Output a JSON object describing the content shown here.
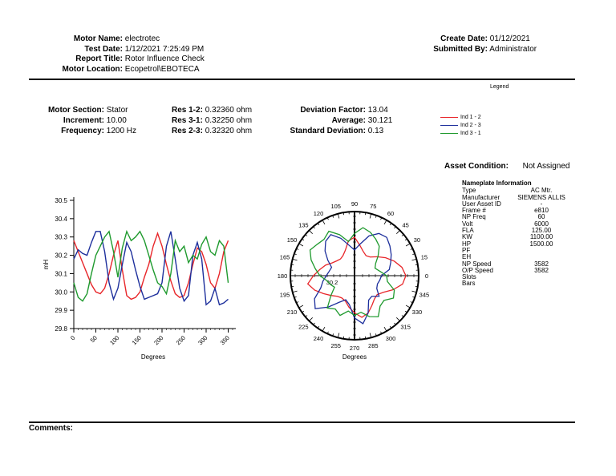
{
  "header": {
    "motor_name_label": "Motor Name:",
    "motor_name": "electrotec",
    "test_date_label": "Test Date:",
    "test_date": "1/12/2021 7:25:49 PM",
    "report_title_label": "Report Title:",
    "report_title": "Rotor Influence Check",
    "motor_location_label": "Motor Location:",
    "motor_location": "Ecopetrol\\EBOTECA",
    "create_date_label": "Create Date:",
    "create_date": "01/12/2021",
    "submitted_by_label": "Submitted By:",
    "submitted_by": "Administrator"
  },
  "summary": {
    "motor_section_label": "Motor Section:",
    "motor_section": "Stator",
    "increment_label": "Increment:",
    "increment": "10.00",
    "frequency_label": "Frequency:",
    "frequency": "1200 Hz",
    "res12_label": "Res 1-2:",
    "res12": "0.32360 ohm",
    "res31_label": "Res 3-1:",
    "res31": "0.32250 ohm",
    "res23_label": "Res 2-3:",
    "res23": "0.32320 ohm",
    "deviation_label": "Deviation Factor:",
    "deviation": "13.04",
    "average_label": "Average:",
    "average": "30.121",
    "stddev_label": "Standard Deviation:",
    "stddev": "0.13"
  },
  "legend": {
    "title": "Legend",
    "items": [
      {
        "label": "Ind 1 - 2",
        "color": "#e8262a"
      },
      {
        "label": "Ind 2 - 3",
        "color": "#1d2f9c"
      },
      {
        "label": "Ind 3 - 1",
        "color": "#1f9a2e"
      }
    ]
  },
  "asset": {
    "label": "Asset Condition:",
    "value": "Not Assigned"
  },
  "nameplate": {
    "title": "Nameplate Information",
    "rows": [
      {
        "k": "Type",
        "v": "AC Mtr."
      },
      {
        "k": "Manufacturer",
        "v": "SIEMENS ALLIS"
      },
      {
        "k": "User Asset ID",
        "v": "-"
      },
      {
        "k": "Frame #",
        "v": "e810"
      },
      {
        "k": "NP Freq",
        "v": "60"
      },
      {
        "k": "Volt",
        "v": "6000"
      },
      {
        "k": "FLA",
        "v": "125.00"
      },
      {
        "k": "KW",
        "v": "1100.00"
      },
      {
        "k": "HP",
        "v": "1500.00"
      },
      {
        "k": "PF",
        "v": ""
      },
      {
        "k": "EH",
        "v": ""
      },
      {
        "k": "NP Speed",
        "v": "3582"
      },
      {
        "k": "O/P Speed",
        "v": "3582"
      },
      {
        "k": "Slots",
        "v": ""
      },
      {
        "k": "Bars",
        "v": ""
      }
    ]
  },
  "comments_label": "Comments:",
  "chart_data": [
    {
      "type": "line",
      "title": "",
      "xlabel": "Degrees",
      "ylabel": "mH",
      "xlim": [
        0,
        360
      ],
      "ylim": [
        29.8,
        30.5
      ],
      "xticks": [
        0,
        50,
        100,
        150,
        200,
        250,
        300,
        350
      ],
      "yticks": [
        29.8,
        29.9,
        30.0,
        30.1,
        30.2,
        30.3,
        30.4,
        30.5
      ],
      "x": [
        0,
        10,
        20,
        30,
        40,
        50,
        60,
        70,
        80,
        90,
        100,
        110,
        120,
        130,
        140,
        150,
        160,
        170,
        180,
        190,
        200,
        210,
        220,
        230,
        240,
        250,
        260,
        270,
        280,
        290,
        300,
        310,
        320,
        330,
        340,
        350
      ],
      "series": [
        {
          "name": "Ind 1 - 2",
          "values": [
            30.28,
            30.22,
            30.16,
            30.1,
            30.04,
            30.0,
            29.99,
            30.02,
            30.1,
            30.2,
            30.28,
            30.12,
            29.98,
            29.96,
            29.97,
            30.0,
            30.08,
            30.15,
            30.25,
            30.32,
            30.25,
            30.15,
            30.06,
            29.99,
            29.97,
            29.98,
            30.05,
            30.15,
            30.24,
            30.22,
            30.15,
            30.05,
            30.02,
            30.1,
            30.22,
            30.28
          ]
        },
        {
          "name": "Ind 2 - 3",
          "values": [
            30.18,
            30.23,
            30.21,
            30.2,
            30.27,
            30.33,
            30.33,
            30.22,
            30.05,
            29.96,
            30.02,
            30.15,
            30.27,
            30.22,
            30.12,
            30.03,
            29.96,
            29.97,
            29.98,
            29.99,
            30.05,
            30.25,
            30.33,
            30.18,
            30.02,
            29.95,
            29.98,
            30.2,
            30.27,
            30.18,
            29.93,
            29.95,
            30.02,
            29.93,
            29.94,
            29.96
          ]
        },
        {
          "name": "Ind 3 - 1",
          "values": [
            30.05,
            29.97,
            29.95,
            29.99,
            30.1,
            30.2,
            30.25,
            30.3,
            30.33,
            30.22,
            30.08,
            30.24,
            30.33,
            30.28,
            30.3,
            30.33,
            30.28,
            30.2,
            30.12,
            30.05,
            30.03,
            29.99,
            30.1,
            30.28,
            30.22,
            30.25,
            30.16,
            30.2,
            30.18,
            30.26,
            30.3,
            30.22,
            30.2,
            30.28,
            30.25,
            30.05
          ]
        }
      ]
    },
    {
      "type": "polar-line",
      "title": "",
      "xlabel": "Degrees",
      "angle_labels": [
        0,
        15,
        30,
        45,
        60,
        75,
        90,
        105,
        120,
        135,
        150,
        165,
        180,
        195,
        210,
        225,
        240,
        255,
        270,
        285,
        300,
        315,
        330,
        345
      ],
      "radial_label": "30.2",
      "theta": [
        0,
        10,
        20,
        30,
        40,
        50,
        60,
        70,
        80,
        90,
        100,
        110,
        120,
        130,
        140,
        150,
        160,
        170,
        180,
        190,
        200,
        210,
        220,
        230,
        240,
        250,
        260,
        270,
        280,
        290,
        300,
        310,
        320,
        330,
        340,
        350
      ],
      "series": [
        {
          "name": "Ind 1 - 2",
          "values": [
            0.8,
            0.75,
            0.66,
            0.56,
            0.46,
            0.38,
            0.36,
            0.4,
            0.48,
            0.6,
            0.55,
            0.42,
            0.36,
            0.34,
            0.36,
            0.4,
            0.48,
            0.55,
            0.64,
            0.74,
            0.66,
            0.56,
            0.48,
            0.42,
            0.4,
            0.42,
            0.5,
            0.58,
            0.66,
            0.62,
            0.54,
            0.48,
            0.46,
            0.52,
            0.64,
            0.76
          ]
        },
        {
          "name": "Ind 2 - 3",
          "values": [
            0.42,
            0.55,
            0.6,
            0.66,
            0.72,
            0.78,
            0.76,
            0.66,
            0.5,
            0.4,
            0.48,
            0.62,
            0.74,
            0.7,
            0.6,
            0.48,
            0.38,
            0.4,
            0.44,
            0.5,
            0.56,
            0.72,
            0.8,
            0.64,
            0.48,
            0.4,
            0.46,
            0.66,
            0.76,
            0.62,
            0.44,
            0.42,
            0.5,
            0.4,
            0.38,
            0.4
          ]
        },
        {
          "name": "Ind 3 - 1",
          "values": [
            0.5,
            0.4,
            0.34,
            0.38,
            0.48,
            0.6,
            0.66,
            0.72,
            0.76,
            0.66,
            0.54,
            0.68,
            0.8,
            0.74,
            0.76,
            0.8,
            0.72,
            0.62,
            0.54,
            0.44,
            0.4,
            0.36,
            0.48,
            0.66,
            0.6,
            0.66,
            0.56,
            0.62,
            0.58,
            0.68,
            0.74,
            0.62,
            0.6,
            0.7,
            0.66,
            0.52
          ]
        }
      ]
    }
  ]
}
